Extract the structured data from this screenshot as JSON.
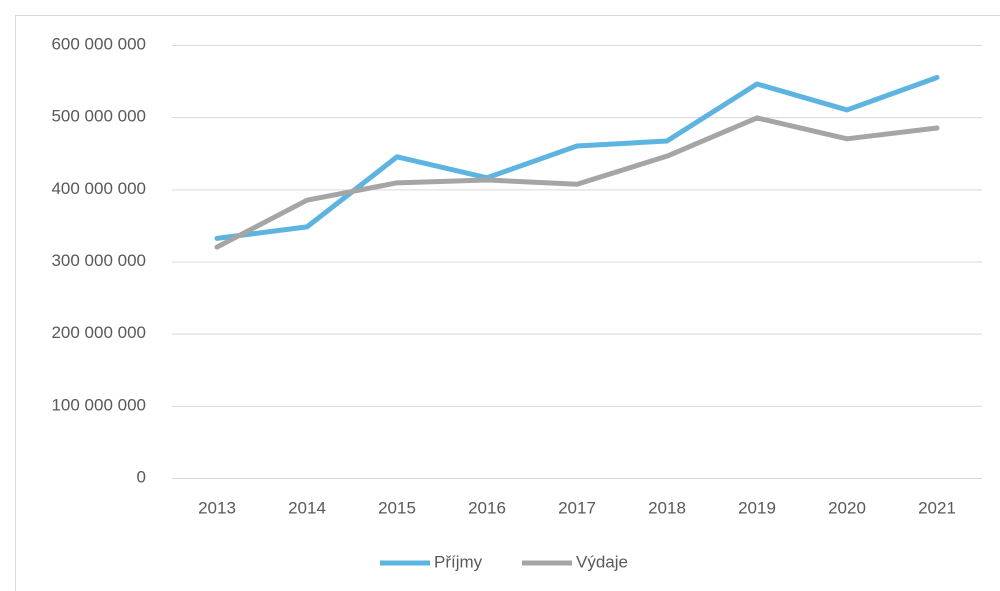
{
  "chart_data": {
    "type": "line",
    "categories": [
      "2013",
      "2014",
      "2015",
      "2016",
      "2017",
      "2018",
      "2019",
      "2020",
      "2021"
    ],
    "series": [
      {
        "name": "Příjmy",
        "color": "#5eb4e0",
        "values": [
          332000000,
          348000000,
          445000000,
          416000000,
          460000000,
          467000000,
          546000000,
          510000000,
          555000000
        ]
      },
      {
        "name": "Výdaje",
        "color": "#a5a5a5",
        "values": [
          320000000,
          385000000,
          409000000,
          413000000,
          407000000,
          446000000,
          499000000,
          470000000,
          485000000
        ]
      }
    ],
    "ylim": [
      0,
      600000000
    ],
    "yticks": [
      0,
      {
        "value": 100000000,
        "label": "100 000 000"
      },
      {
        "value": 200000000,
        "label": "200 000 000"
      },
      {
        "value": 300000000,
        "label": "300 000 000"
      },
      {
        "value": 400000000,
        "label": "400 000 000"
      },
      {
        "value": 500000000,
        "label": "500 000 000"
      },
      {
        "value": 600000000,
        "label": "600 000 000"
      }
    ],
    "grid": true,
    "legend": "bottom"
  }
}
